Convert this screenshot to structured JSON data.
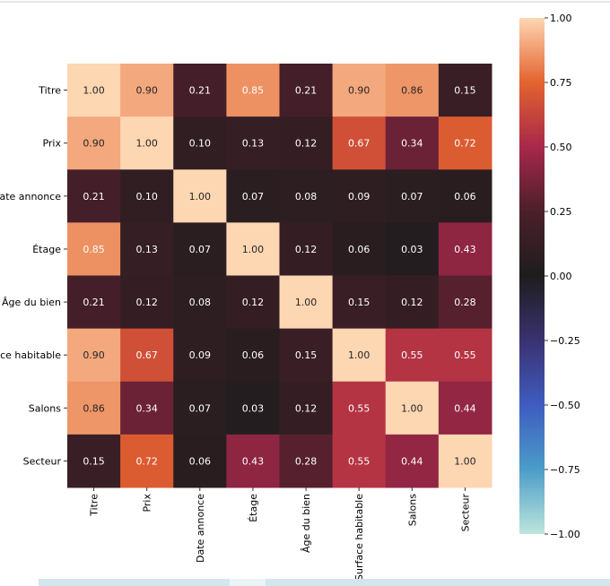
{
  "chart_data": {
    "type": "heatmap",
    "labels": [
      "Titre",
      "Prix",
      "Date annonce",
      "Étage",
      "Âge du bien",
      "Surface habitable",
      "Salons",
      "Secteur"
    ],
    "values": [
      [
        1.0,
        0.9,
        0.21,
        0.85,
        0.21,
        0.9,
        0.86,
        0.15
      ],
      [
        0.9,
        1.0,
        0.1,
        0.13,
        0.12,
        0.67,
        0.34,
        0.72
      ],
      [
        0.21,
        0.1,
        1.0,
        0.07,
        0.08,
        0.09,
        0.07,
        0.06
      ],
      [
        0.85,
        0.13,
        0.07,
        1.0,
        0.12,
        0.06,
        0.03,
        0.43
      ],
      [
        0.21,
        0.12,
        0.08,
        0.12,
        1.0,
        0.15,
        0.12,
        0.28
      ],
      [
        0.9,
        0.67,
        0.09,
        0.06,
        0.15,
        1.0,
        0.55,
        0.55
      ],
      [
        0.86,
        0.34,
        0.07,
        0.03,
        0.12,
        0.55,
        1.0,
        0.44
      ],
      [
        0.15,
        0.72,
        0.06,
        0.43,
        0.28,
        0.55,
        0.44,
        1.0
      ]
    ],
    "colorbar": {
      "range": [
        -1,
        1
      ],
      "ticks": [
        1.0,
        0.75,
        0.5,
        0.25,
        0.0,
        -0.25,
        -0.5,
        -0.75,
        -1.0
      ],
      "tick_labels": [
        "1.00",
        "0.75",
        "0.50",
        "0.25",
        "0.00",
        "−0.25",
        "−0.50",
        "−0.75",
        "−1.00"
      ],
      "colormap": "icefire",
      "center": 0
    },
    "annotations": true,
    "colors": {
      "-1": "#bde6dc",
      "-0.75": "#4b9cc8",
      "-0.5": "#3f5cc0",
      "-0.25": "#3a3270",
      "0": "#1e1d1d",
      "0.25": "#4b1f2b",
      "0.5": "#a8284a",
      "0.75": "#e3632e",
      "1": "#fdd6b2"
    }
  }
}
